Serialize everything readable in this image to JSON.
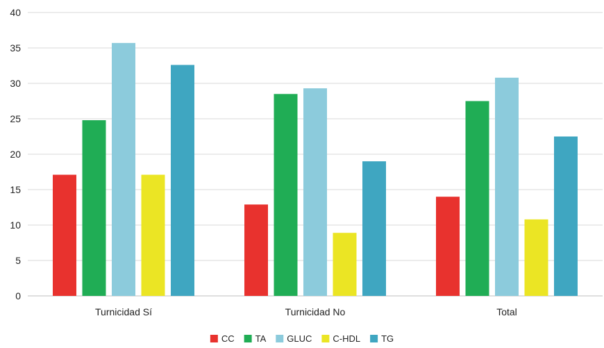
{
  "chart_data": {
    "type": "bar",
    "categories": [
      "Turnicidad Sí",
      "Turnicidad No",
      "Total"
    ],
    "series": [
      {
        "name": "CC",
        "color": "#e8322e",
        "values": [
          17.1,
          12.9,
          14.0
        ]
      },
      {
        "name": "TA",
        "color": "#20ad55",
        "values": [
          24.8,
          28.5,
          27.5
        ]
      },
      {
        "name": "GLUC",
        "color": "#8ccbdc",
        "values": [
          35.7,
          29.3,
          30.8
        ]
      },
      {
        "name": "C-HDL",
        "color": "#ebe524",
        "values": [
          17.1,
          8.9,
          10.8
        ]
      },
      {
        "name": "TG",
        "color": "#3fa6c1",
        "values": [
          32.6,
          19.0,
          22.5
        ]
      }
    ],
    "ylim": [
      0,
      40
    ],
    "yticks": [
      "0",
      "5",
      "10",
      "15",
      "20",
      "25",
      "30",
      "35",
      "40"
    ],
    "grid": true,
    "legend": "bottom-center"
  }
}
